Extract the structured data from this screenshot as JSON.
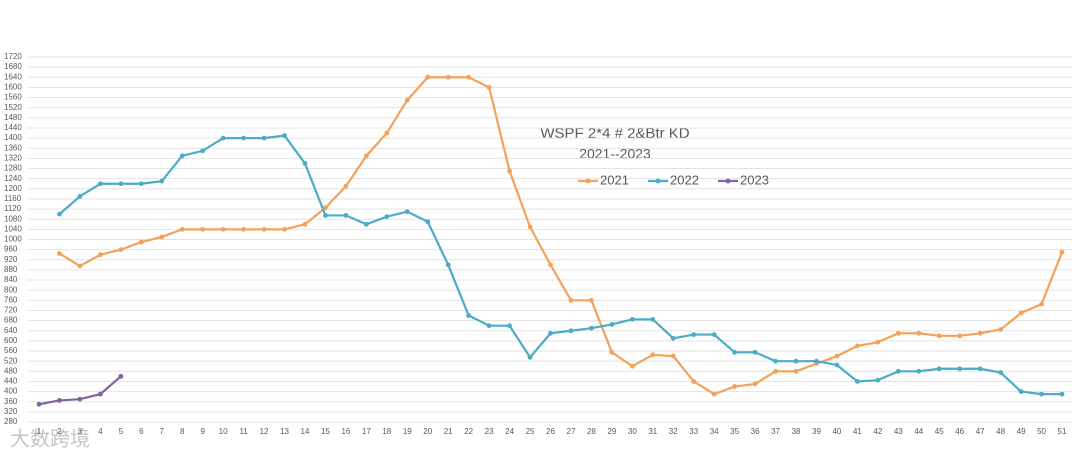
{
  "chart_data": {
    "type": "line",
    "title": "WSPF 2*4 # 2&Btr KD",
    "subtitle": "2021--2023",
    "watermark": "大数跨境",
    "categories": [
      "1",
      "2",
      "3",
      "4",
      "5",
      "6",
      "7",
      "8",
      "9",
      "10",
      "11",
      "12",
      "13",
      "14",
      "15",
      "16",
      "17",
      "18",
      "19",
      "20",
      "21",
      "22",
      "23",
      "24",
      "25",
      "26",
      "27",
      "28",
      "29",
      "30",
      "31",
      "32",
      "33",
      "34",
      "35",
      "36",
      "37",
      "38",
      "39",
      "40",
      "41",
      "42",
      "43",
      "44",
      "45",
      "46",
      "47",
      "48",
      "49",
      "50",
      "51"
    ],
    "series": [
      {
        "name": "2021",
        "color": "#f2a25a",
        "values": [
          null,
          945,
          895,
          940,
          960,
          990,
          1010,
          1040,
          1040,
          1040,
          1040,
          1040,
          1040,
          1060,
          1125,
          1210,
          1330,
          1420,
          1550,
          1640,
          1640,
          1640,
          1600,
          1270,
          1050,
          900,
          760,
          760,
          555,
          500,
          545,
          540,
          440,
          390,
          420,
          430,
          480,
          480,
          510,
          540,
          580,
          595,
          630,
          630,
          620,
          620,
          630,
          645,
          710,
          745,
          950
        ]
      },
      {
        "name": "2022",
        "color": "#4bacc6",
        "values": [
          null,
          1100,
          1170,
          1220,
          1220,
          1220,
          1230,
          1330,
          1350,
          1400,
          1400,
          1400,
          1410,
          1300,
          1095,
          1095,
          1060,
          1090,
          1110,
          1070,
          900,
          700,
          660,
          660,
          535,
          630,
          640,
          650,
          665,
          685,
          685,
          610,
          625,
          625,
          555,
          555,
          520,
          520,
          520,
          505,
          440,
          445,
          480,
          480,
          490,
          490,
          490,
          475,
          400,
          390,
          390
        ]
      },
      {
        "name": "2023",
        "color": "#8064a2",
        "values": [
          350,
          365,
          370,
          390,
          460,
          null,
          null,
          null,
          null,
          null,
          null,
          null,
          null,
          null,
          null,
          null,
          null,
          null,
          null,
          null,
          null,
          null,
          null,
          null,
          null,
          null,
          null,
          null,
          null,
          null,
          null,
          null,
          null,
          null,
          null,
          null,
          null,
          null,
          null,
          null,
          null,
          null,
          null,
          null,
          null,
          null,
          null,
          null,
          null,
          null,
          null
        ]
      }
    ],
    "ylim": [
      280,
      1720
    ],
    "yticks": [
      280,
      320,
      360,
      400,
      440,
      480,
      520,
      560,
      600,
      640,
      680,
      720,
      760,
      800,
      840,
      880,
      920,
      960,
      1000,
      1040,
      1080,
      1120,
      1160,
      1200,
      1240,
      1280,
      1320,
      1360,
      1400,
      1440,
      1480,
      1520,
      1560,
      1600,
      1640,
      1680,
      1720
    ],
    "grid": true
  }
}
